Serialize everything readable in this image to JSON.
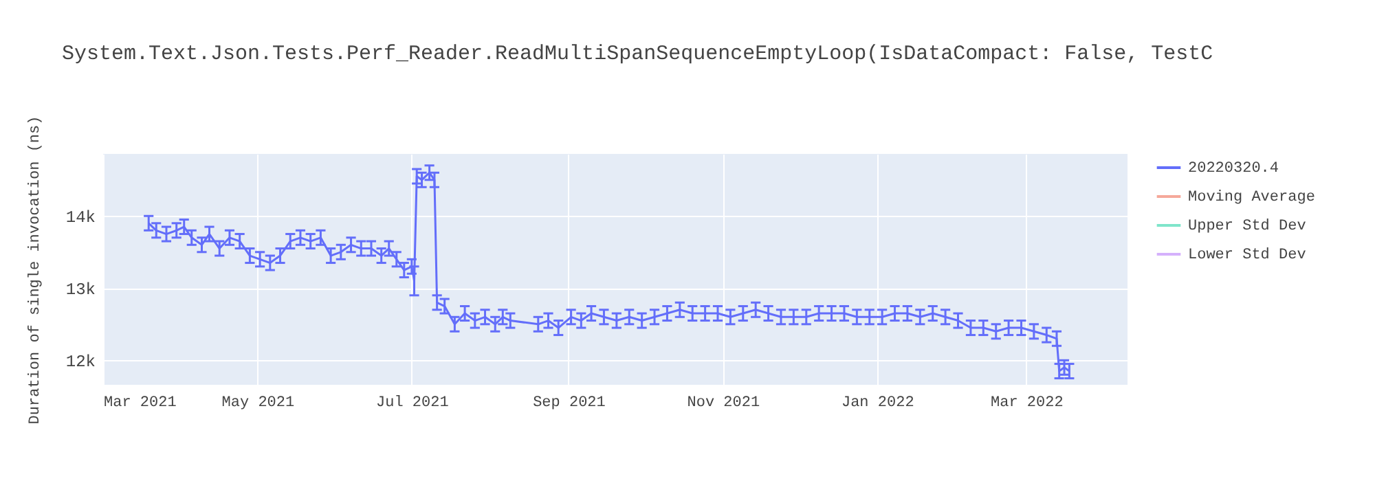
{
  "chart_data": {
    "type": "line",
    "title": "System.Text.Json.Tests.Perf_Reader.ReadMultiSpanSequenceEmptyLoop(IsDataCompact: False, TestC",
    "ylabel": "Duration of single invocation (ns)",
    "xlim": [
      "2021-03-01",
      "2022-04-10"
    ],
    "ylim": [
      11660,
      14860
    ],
    "xticks": [
      {
        "value": "2021-03-01",
        "label": "Mar 2021"
      },
      {
        "value": "2021-05-01",
        "label": "May 2021"
      },
      {
        "value": "2021-07-01",
        "label": "Jul 2021"
      },
      {
        "value": "2021-09-01",
        "label": "Sep 2021"
      },
      {
        "value": "2021-11-01",
        "label": "Nov 2021"
      },
      {
        "value": "2022-01-01",
        "label": "Jan 2022"
      },
      {
        "value": "2022-03-01",
        "label": "Mar 2022"
      }
    ],
    "yticks": [
      {
        "value": 12000,
        "label": "12k"
      },
      {
        "value": 13000,
        "label": "13k"
      },
      {
        "value": 14000,
        "label": "14k"
      }
    ],
    "grid": true,
    "legend": "top right",
    "series": [
      {
        "name": "20220320.4",
        "color": "#636efa",
        "x": [
          "2021-03-19",
          "2021-03-22",
          "2021-03-26",
          "2021-03-30",
          "2021-04-02",
          "2021-04-05",
          "2021-04-09",
          "2021-04-12",
          "2021-04-16",
          "2021-04-20",
          "2021-04-24",
          "2021-04-28",
          "2021-05-02",
          "2021-05-06",
          "2021-05-10",
          "2021-05-14",
          "2021-05-18",
          "2021-05-22",
          "2021-05-26",
          "2021-05-30",
          "2021-06-03",
          "2021-06-07",
          "2021-06-11",
          "2021-06-15",
          "2021-06-19",
          "2021-06-22",
          "2021-06-25",
          "2021-06-28",
          "2021-07-01",
          "2021-07-02",
          "2021-07-03",
          "2021-07-05",
          "2021-07-08",
          "2021-07-10",
          "2021-07-11",
          "2021-07-14",
          "2021-07-18",
          "2021-07-22",
          "2021-07-26",
          "2021-07-30",
          "2021-08-03",
          "2021-08-06",
          "2021-08-09",
          "2021-08-20",
          "2021-08-24",
          "2021-08-28",
          "2021-09-02",
          "2021-09-06",
          "2021-09-10",
          "2021-09-15",
          "2021-09-20",
          "2021-09-25",
          "2021-09-30",
          "2021-10-05",
          "2021-10-10",
          "2021-10-15",
          "2021-10-20",
          "2021-10-25",
          "2021-10-30",
          "2021-11-04",
          "2021-11-09",
          "2021-11-14",
          "2021-11-19",
          "2021-11-24",
          "2021-11-29",
          "2021-12-04",
          "2021-12-09",
          "2021-12-14",
          "2021-12-19",
          "2021-12-24",
          "2021-12-29",
          "2022-01-03",
          "2022-01-08",
          "2022-01-13",
          "2022-01-18",
          "2022-01-23",
          "2022-01-28",
          "2022-02-02",
          "2022-02-07",
          "2022-02-12",
          "2022-02-17",
          "2022-02-22",
          "2022-02-27",
          "2022-03-04",
          "2022-03-09",
          "2022-03-13",
          "2022-03-14",
          "2022-03-16",
          "2022-03-18"
        ],
        "values": [
          13900,
          13800,
          13750,
          13800,
          13850,
          13700,
          13600,
          13750,
          13550,
          13700,
          13650,
          13450,
          13400,
          13350,
          13450,
          13650,
          13700,
          13650,
          13700,
          13450,
          13500,
          13600,
          13550,
          13550,
          13450,
          13550,
          13400,
          13250,
          13300,
          13100,
          14550,
          14500,
          14600,
          14500,
          12800,
          12750,
          12500,
          12650,
          12550,
          12600,
          12500,
          12600,
          12550,
          12500,
          12550,
          12450,
          12600,
          12550,
          12650,
          12600,
          12550,
          12600,
          12550,
          12600,
          12650,
          12700,
          12650,
          12650,
          12650,
          12600,
          12650,
          12700,
          12650,
          12600,
          12600,
          12600,
          12650,
          12650,
          12650,
          12600,
          12600,
          12600,
          12650,
          12650,
          12600,
          12650,
          12600,
          12550,
          12450,
          12450,
          12400,
          12450,
          12450,
          12400,
          12350,
          12300,
          11850,
          11900,
          11850
        ],
        "errors": [
          100,
          100,
          100,
          100,
          100,
          100,
          100,
          100,
          100,
          100,
          100,
          100,
          100,
          100,
          100,
          100,
          100,
          100,
          100,
          100,
          100,
          100,
          100,
          100,
          100,
          100,
          100,
          100,
          100,
          200,
          100,
          100,
          100,
          100,
          100,
          100,
          100,
          100,
          100,
          100,
          100,
          100,
          100,
          100,
          100,
          100,
          100,
          100,
          100,
          100,
          100,
          100,
          100,
          100,
          100,
          100,
          100,
          100,
          100,
          100,
          100,
          100,
          100,
          100,
          100,
          100,
          100,
          100,
          100,
          100,
          100,
          100,
          100,
          100,
          100,
          100,
          100,
          100,
          100,
          100,
          100,
          100,
          100,
          100,
          100,
          100,
          100,
          100,
          100
        ]
      },
      {
        "name": "Moving Average",
        "color": "#f5a89a"
      },
      {
        "name": "Upper Std Dev",
        "color": "#7fe5ca"
      },
      {
        "name": "Lower Std Dev",
        "color": "#d5b1fc"
      }
    ]
  }
}
